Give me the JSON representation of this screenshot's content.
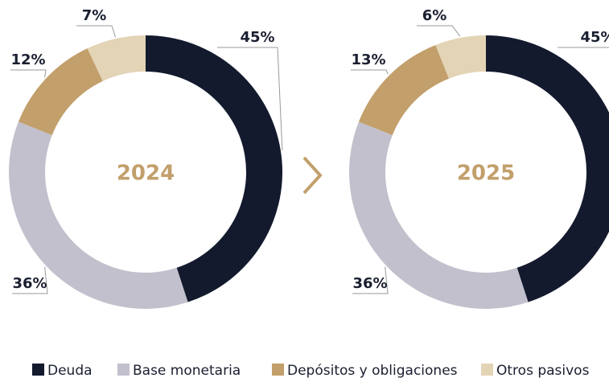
{
  "chart_data": [
    {
      "type": "pie",
      "title": "2024",
      "categories": [
        "Deuda",
        "Base monetaria",
        "Depósitos y obligaciones",
        "Otros pasivos"
      ],
      "values": [
        45,
        36,
        12,
        7
      ],
      "value_labels": [
        "45%",
        "36%",
        "12%",
        "7%"
      ],
      "colors": [
        "#131a2e",
        "#c2c0cc",
        "#c29f6b",
        "#e3d4b6"
      ]
    },
    {
      "type": "pie",
      "title": "2025",
      "categories": [
        "Deuda",
        "Base monetaria",
        "Depósitos y obligaciones",
        "Otros pasivos"
      ],
      "values": [
        45,
        36,
        13,
        6
      ],
      "value_labels": [
        "45%",
        "36%",
        "13%",
        "6%"
      ],
      "colors": [
        "#131a2e",
        "#c2c0cc",
        "#c29f6b",
        "#e3d4b6"
      ]
    }
  ]
}
